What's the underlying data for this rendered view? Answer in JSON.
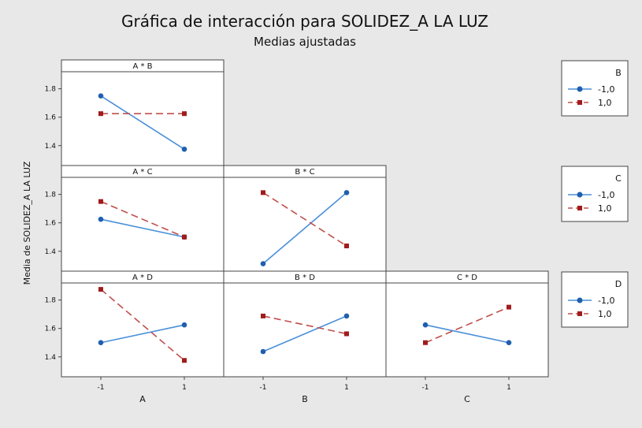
{
  "chart_data": {
    "type": "line",
    "title": "Gráfica de interacción para SOLIDEZ_A LA LUZ",
    "subtitle": "Medias ajustadas",
    "ylabel": "Media de SOLIDEZ_A LA LUZ",
    "ylim": [
      1.26,
      1.92
    ],
    "yticks": [
      "1.4",
      "1.6",
      "1.8"
    ],
    "x_levels": [
      "-1",
      "1"
    ],
    "factors": [
      "A",
      "B",
      "C"
    ],
    "colors": {
      "low": "#1f5fae",
      "high": "#a01c1c",
      "line_low": "#4a90d9",
      "line_high": "#c0504d"
    },
    "legends": [
      {
        "title": "B",
        "entries": [
          "-1,0",
          "1,0"
        ]
      },
      {
        "title": "C",
        "entries": [
          "-1,0",
          "1,0"
        ]
      },
      {
        "title": "D",
        "entries": [
          "-1,0",
          "1,0"
        ]
      }
    ],
    "panels": [
      {
        "label": "A * B",
        "row": 0,
        "col": 0,
        "xlabel": "",
        "series": [
          {
            "name": "-1,0",
            "values": [
              1.75,
              1.375
            ]
          },
          {
            "name": "1,0",
            "values": [
              1.625,
              1.625
            ]
          }
        ]
      },
      {
        "label": "A * C",
        "row": 1,
        "col": 0,
        "xlabel": "",
        "series": [
          {
            "name": "-1,0",
            "values": [
              1.625,
              1.5
            ]
          },
          {
            "name": "1,0",
            "values": [
              1.75,
              1.5
            ]
          }
        ]
      },
      {
        "label": "B * C",
        "row": 1,
        "col": 1,
        "xlabel": "",
        "series": [
          {
            "name": "-1,0",
            "values": [
              1.3125,
              1.8125
            ]
          },
          {
            "name": "1,0",
            "values": [
              1.8125,
              1.4375
            ]
          }
        ]
      },
      {
        "label": "A * D",
        "row": 2,
        "col": 0,
        "xlabel": "A",
        "series": [
          {
            "name": "-1,0",
            "values": [
              1.5,
              1.625
            ]
          },
          {
            "name": "1,0",
            "values": [
              1.875,
              1.375
            ]
          }
        ]
      },
      {
        "label": "B * D",
        "row": 2,
        "col": 1,
        "xlabel": "B",
        "series": [
          {
            "name": "-1,0",
            "values": [
              1.4375,
              1.6875
            ]
          },
          {
            "name": "1,0",
            "values": [
              1.6875,
              1.5625
            ]
          }
        ]
      },
      {
        "label": "C * D",
        "row": 2,
        "col": 2,
        "xlabel": "C",
        "series": [
          {
            "name": "-1,0",
            "values": [
              1.625,
              1.5
            ]
          },
          {
            "name": "1,0",
            "values": [
              1.5,
              1.75
            ]
          }
        ]
      }
    ]
  }
}
